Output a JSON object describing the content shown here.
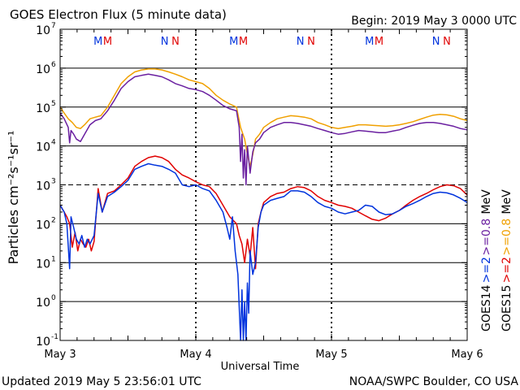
{
  "header": {
    "title": "GOES Electron Flux (5 minute data)",
    "begin": "Begin: 2019 May 3 0000 UTC"
  },
  "footer": {
    "updated": "Updated 2019 May  5 23:56:01 UTC",
    "credit": "NOAA/SWPC Boulder, CO USA"
  },
  "colors": {
    "goes14_ge2": "#0033dd",
    "goes15_ge2": "#e00000",
    "goes14_ge08": "#6a1fa0",
    "goes15_ge08": "#f0a000",
    "axis": "#000000",
    "background": "#ffffff"
  },
  "chart_data": {
    "type": "line",
    "title": "GOES Electron Flux (5 minute data)",
    "xlabel": "Universal Time",
    "ylabel": "Particles cm⁻²s⁻¹sr⁻¹",
    "x_unit": "days since 2019 May 3 0000 UTC",
    "xlim": [
      0,
      3
    ],
    "ylim": [
      0.1,
      10000000
    ],
    "y_scale": "log",
    "x_ticks": [
      {
        "x": 0,
        "label": "May 3"
      },
      {
        "x": 1,
        "label": "May 4"
      },
      {
        "x": 2,
        "label": "May 5"
      },
      {
        "x": 3,
        "label": "May 6"
      }
    ],
    "y_ticks": [
      {
        "v": 0.1,
        "base": "10",
        "exp": "-1"
      },
      {
        "v": 1,
        "base": "10",
        "exp": "0"
      },
      {
        "v": 10,
        "base": "10",
        "exp": "1"
      },
      {
        "v": 100,
        "base": "10",
        "exp": "2"
      },
      {
        "v": 1000,
        "base": "10",
        "exp": "3"
      },
      {
        "v": 10000,
        "base": "10",
        "exp": "4"
      },
      {
        "v": 100000,
        "base": "10",
        "exp": "5"
      },
      {
        "v": 1000000,
        "base": "10",
        "exp": "6"
      },
      {
        "v": 10000000,
        "base": "10",
        "exp": "7"
      }
    ],
    "threshold_line": 1000,
    "legend_right": [
      {
        "text": "GOES14",
        "color": "#000000"
      },
      {
        "text": ">=2",
        "color": "#0033dd"
      },
      {
        "text": ">=0.8",
        "color": "#6a1fa0"
      },
      {
        "text": "MeV",
        "color": "#000000"
      },
      {
        "text": "GOES15",
        "color": "#000000"
      },
      {
        "text": ">=2",
        "color": "#e00000"
      },
      {
        "text": ">=0.8",
        "color": "#f0a000"
      },
      {
        "text": "MeV",
        "color": "#000000"
      }
    ],
    "markers": [
      {
        "x": 0.28,
        "text": "M",
        "color": "#0033dd"
      },
      {
        "x": 0.35,
        "text": "M",
        "color": "#e00000"
      },
      {
        "x": 0.77,
        "text": "N",
        "color": "#0033dd"
      },
      {
        "x": 0.85,
        "text": "N",
        "color": "#e00000"
      },
      {
        "x": 1.28,
        "text": "M",
        "color": "#0033dd"
      },
      {
        "x": 1.35,
        "text": "M",
        "color": "#e00000"
      },
      {
        "x": 1.77,
        "text": "N",
        "color": "#0033dd"
      },
      {
        "x": 1.85,
        "text": "N",
        "color": "#e00000"
      },
      {
        "x": 2.28,
        "text": "M",
        "color": "#0033dd"
      },
      {
        "x": 2.35,
        "text": "M",
        "color": "#e00000"
      },
      {
        "x": 2.77,
        "text": "N",
        "color": "#0033dd"
      },
      {
        "x": 2.85,
        "text": "N",
        "color": "#e00000"
      }
    ],
    "series": [
      {
        "name": "GOES15 >=0.8 MeV",
        "color": "#f0a000",
        "x": [
          0.0,
          0.03,
          0.06,
          0.09,
          0.12,
          0.15,
          0.18,
          0.22,
          0.26,
          0.3,
          0.35,
          0.4,
          0.45,
          0.5,
          0.55,
          0.6,
          0.65,
          0.7,
          0.75,
          0.8,
          0.85,
          0.9,
          0.95,
          1.0,
          1.05,
          1.1,
          1.15,
          1.2,
          1.25,
          1.3,
          1.33,
          1.36,
          1.38,
          1.4,
          1.42,
          1.44,
          1.47,
          1.5,
          1.55,
          1.6,
          1.65,
          1.7,
          1.75,
          1.8,
          1.85,
          1.9,
          1.95,
          2.0,
          2.05,
          2.1,
          2.15,
          2.2,
          2.25,
          2.3,
          2.35,
          2.4,
          2.45,
          2.5,
          2.55,
          2.6,
          2.65,
          2.7,
          2.75,
          2.8,
          2.85,
          2.9,
          2.95,
          3.0
        ],
        "values": [
          100000,
          70000,
          50000,
          40000,
          30000,
          28000,
          35000,
          50000,
          55000,
          60000,
          100000,
          200000,
          400000,
          600000,
          800000,
          900000,
          950000,
          950000,
          900000,
          800000,
          700000,
          600000,
          500000,
          450000,
          400000,
          300000,
          200000,
          150000,
          120000,
          100000,
          30000,
          15000,
          6000,
          3000,
          6000,
          15000,
          20000,
          30000,
          40000,
          50000,
          55000,
          60000,
          58000,
          55000,
          50000,
          40000,
          35000,
          30000,
          28000,
          30000,
          32000,
          35000,
          35000,
          34000,
          33000,
          32000,
          33000,
          35000,
          38000,
          42000,
          48000,
          55000,
          62000,
          65000,
          63000,
          58000,
          50000,
          45000
        ]
      },
      {
        "name": "GOES14 >=0.8 MeV",
        "color": "#6a1fa0",
        "x": [
          0.0,
          0.03,
          0.06,
          0.07,
          0.08,
          0.1,
          0.12,
          0.15,
          0.18,
          0.22,
          0.26,
          0.3,
          0.35,
          0.4,
          0.45,
          0.5,
          0.55,
          0.6,
          0.65,
          0.7,
          0.75,
          0.8,
          0.85,
          0.9,
          0.95,
          1.0,
          1.05,
          1.1,
          1.15,
          1.2,
          1.25,
          1.3,
          1.32,
          1.33,
          1.34,
          1.35,
          1.36,
          1.37,
          1.38,
          1.4,
          1.42,
          1.44,
          1.47,
          1.5,
          1.55,
          1.6,
          1.65,
          1.7,
          1.75,
          1.8,
          1.85,
          1.9,
          1.95,
          2.0,
          2.05,
          2.1,
          2.15,
          2.2,
          2.25,
          2.3,
          2.35,
          2.4,
          2.45,
          2.5,
          2.55,
          2.6,
          2.65,
          2.7,
          2.75,
          2.8,
          2.85,
          2.9,
          2.95,
          3.0
        ],
        "values": [
          70000,
          50000,
          30000,
          12000,
          25000,
          20000,
          15000,
          13000,
          20000,
          35000,
          45000,
          50000,
          80000,
          150000,
          300000,
          450000,
          600000,
          650000,
          700000,
          650000,
          600000,
          500000,
          400000,
          350000,
          300000,
          280000,
          250000,
          200000,
          150000,
          110000,
          90000,
          80000,
          30000,
          4000,
          20000,
          1500,
          8000,
          1000,
          10000,
          2000,
          7000,
          12000,
          15000,
          22000,
          30000,
          35000,
          40000,
          40000,
          38000,
          35000,
          32000,
          28000,
          25000,
          22000,
          20000,
          21000,
          23000,
          25000,
          24000,
          23000,
          22000,
          22000,
          24000,
          26000,
          30000,
          34000,
          38000,
          40000,
          40000,
          38000,
          35000,
          32000,
          28000,
          26000
        ]
      },
      {
        "name": "GOES15 >=2 MeV",
        "color": "#e00000",
        "x": [
          0.0,
          0.03,
          0.05,
          0.07,
          0.09,
          0.11,
          0.13,
          0.15,
          0.17,
          0.19,
          0.21,
          0.23,
          0.25,
          0.28,
          0.31,
          0.35,
          0.4,
          0.45,
          0.5,
          0.55,
          0.6,
          0.65,
          0.7,
          0.75,
          0.8,
          0.85,
          0.9,
          0.95,
          1.0,
          1.05,
          1.1,
          1.15,
          1.2,
          1.25,
          1.3,
          1.32,
          1.34,
          1.36,
          1.38,
          1.4,
          1.42,
          1.44,
          1.46,
          1.48,
          1.5,
          1.55,
          1.6,
          1.65,
          1.7,
          1.75,
          1.8,
          1.85,
          1.9,
          1.95,
          2.0,
          2.05,
          2.1,
          2.15,
          2.2,
          2.25,
          2.3,
          2.35,
          2.4,
          2.45,
          2.5,
          2.55,
          2.6,
          2.65,
          2.7,
          2.75,
          2.8,
          2.85,
          2.9,
          2.95,
          3.0
        ],
        "values": [
          300,
          200,
          150,
          100,
          25,
          60,
          20,
          40,
          30,
          25,
          40,
          20,
          35,
          800,
          200,
          600,
          700,
          1000,
          1500,
          3000,
          4000,
          5000,
          5500,
          5000,
          4000,
          2500,
          1800,
          1500,
          1200,
          1000,
          900,
          600,
          300,
          150,
          100,
          50,
          30,
          10,
          40,
          15,
          80,
          7,
          100,
          200,
          350,
          500,
          600,
          650,
          800,
          900,
          850,
          700,
          500,
          400,
          350,
          300,
          280,
          250,
          200,
          160,
          130,
          120,
          140,
          180,
          220,
          300,
          400,
          500,
          600,
          750,
          900,
          1000,
          950,
          800,
          550
        ]
      },
      {
        "name": "GOES14 >=2 MeV",
        "color": "#0033dd",
        "x": [
          0.0,
          0.03,
          0.05,
          0.07,
          0.08,
          0.1,
          0.12,
          0.14,
          0.16,
          0.18,
          0.2,
          0.22,
          0.25,
          0.28,
          0.31,
          0.35,
          0.4,
          0.45,
          0.5,
          0.55,
          0.6,
          0.65,
          0.7,
          0.75,
          0.8,
          0.85,
          0.9,
          0.95,
          1.0,
          1.05,
          1.1,
          1.15,
          1.2,
          1.23,
          1.25,
          1.27,
          1.29,
          1.31,
          1.33,
          1.34,
          1.35,
          1.36,
          1.37,
          1.38,
          1.39,
          1.4,
          1.42,
          1.44,
          1.46,
          1.48,
          1.5,
          1.55,
          1.6,
          1.65,
          1.7,
          1.75,
          1.8,
          1.85,
          1.9,
          1.95,
          2.0,
          2.05,
          2.1,
          2.15,
          2.2,
          2.25,
          2.3,
          2.35,
          2.4,
          2.45,
          2.5,
          2.55,
          2.6,
          2.65,
          2.7,
          2.75,
          2.8,
          2.85,
          2.9,
          2.95,
          3.0
        ],
        "values": [
          300,
          200,
          100,
          7,
          150,
          80,
          40,
          30,
          50,
          25,
          40,
          30,
          50,
          600,
          200,
          500,
          650,
          900,
          1300,
          2500,
          3000,
          3500,
          3200,
          3000,
          2500,
          2000,
          1000,
          900,
          1000,
          800,
          700,
          400,
          200,
          80,
          40,
          150,
          20,
          5,
          0.1,
          2,
          0.1,
          1,
          0.1,
          3,
          0.5,
          20,
          5,
          10,
          80,
          200,
          300,
          400,
          450,
          500,
          700,
          700,
          650,
          500,
          350,
          280,
          250,
          200,
          180,
          200,
          220,
          300,
          280,
          200,
          170,
          180,
          220,
          280,
          330,
          400,
          500,
          600,
          650,
          620,
          550,
          450,
          350
        ]
      }
    ]
  }
}
